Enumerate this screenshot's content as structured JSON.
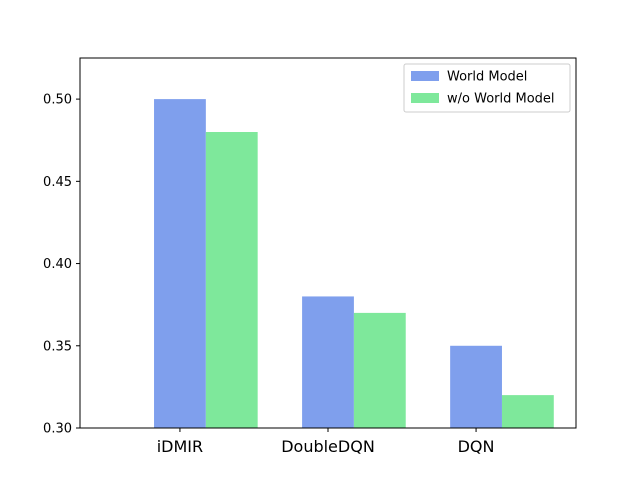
{
  "chart_data": {
    "type": "bar",
    "title": "",
    "xlabel": "",
    "ylabel": "",
    "categories": [
      "iDMIR",
      "DoubleDQN",
      "DQN"
    ],
    "series": [
      {
        "name": "World Model",
        "values": [
          0.5,
          0.38,
          0.35
        ],
        "color": "#7f9fed"
      },
      {
        "name": "w/o World Model",
        "values": [
          0.48,
          0.37,
          0.32
        ],
        "color": "#7ee89b"
      }
    ],
    "ylim": [
      0.3,
      0.525
    ],
    "yticks": [
      "0.30",
      "0.35",
      "0.40",
      "0.45",
      "0.50"
    ],
    "grid": false,
    "legend_position": "top-right"
  }
}
